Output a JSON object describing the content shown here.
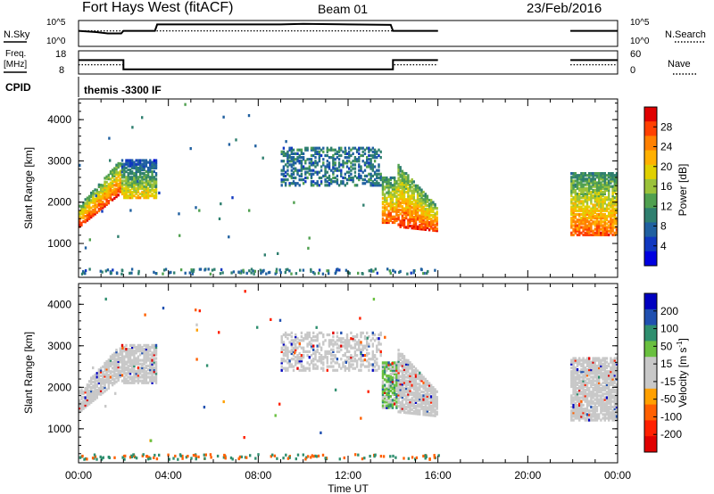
{
  "header": {
    "title": "Fort Hays West (fitACF)",
    "beam": "Beam 01",
    "date": "23/Feb/2016"
  },
  "chart_data": [
    {
      "type": "line",
      "panel": "nsky",
      "ylabel": "N.Sky",
      "ylabel_right": "N.Search",
      "y_left_ticks": [
        "10^5",
        "10^0"
      ],
      "y_right_ticks": [
        "10^5",
        "10^0"
      ],
      "segments": [
        {
          "x": [
            0.0,
            0.8,
            1.3,
            1.9,
            2.0,
            3.4,
            3.5,
            9.0,
            10.0,
            12.0,
            13.9,
            14.0,
            16.0
          ],
          "y": [
            0.6,
            0.55,
            0.5,
            0.5,
            0.6,
            0.6,
            0.85,
            0.85,
            0.87,
            0.85,
            0.83,
            0.6,
            0.6
          ]
        },
        {
          "x": [
            21.9,
            24.0
          ],
          "y": [
            0.6,
            0.6
          ]
        }
      ],
      "dotted_segments": [
        {
          "x": [
            0.0,
            16.0
          ],
          "y": [
            0.6,
            0.6
          ]
        },
        {
          "x": [
            21.9,
            24.0
          ],
          "y": [
            0.6,
            0.6
          ]
        }
      ]
    },
    {
      "type": "line",
      "panel": "freq",
      "ylabel": "Freq.",
      "yunit": "[MHz]",
      "ylabel_right": "Nave",
      "y_left_ticks": [
        "18",
        "8"
      ],
      "y_right_ticks": [
        "60",
        "0"
      ],
      "segments": [
        {
          "x": [
            0.0,
            2.0,
            2.0,
            14.0,
            14.0,
            16.0
          ],
          "y": [
            14,
            14,
            10,
            10,
            14,
            14
          ]
        },
        {
          "x": [
            21.9,
            24.0
          ],
          "y": [
            14,
            14
          ]
        }
      ],
      "dotted_segments": [
        {
          "x": [
            0.0,
            2.0,
            2.0,
            14.0,
            14.0,
            16.0
          ],
          "y": [
            12,
            12,
            10,
            10,
            12,
            12
          ]
        },
        {
          "x": [
            21.9,
            24.0
          ],
          "y": [
            12,
            12
          ]
        }
      ]
    },
    {
      "type": "table",
      "panel": "cpid",
      "label": "CPID",
      "value": "themis -3300 IF"
    },
    {
      "type": "heatmap",
      "panel": "power",
      "ylabel": "Slant Range [km]",
      "xlabel": "Time UT",
      "xlim": [
        0,
        24
      ],
      "ylim": [
        180,
        4500
      ],
      "xticks": [
        "00:00",
        "04:00",
        "08:00",
        "12:00",
        "16:00",
        "20:00",
        "00:00"
      ],
      "yticks": [
        1000,
        2000,
        3000,
        4000
      ],
      "colorbar": {
        "label": "Power [dB]",
        "ticks": [
          "28",
          "24",
          "20",
          "16",
          "12",
          "8",
          "4"
        ],
        "colors": [
          "#e00000",
          "#ff4000",
          "#ff8000",
          "#ffb000",
          "#e0d000",
          "#9bc23a",
          "#50a050",
          "#2f7f6f",
          "#2060a0",
          "#1038c0",
          "#0000e0"
        ]
      },
      "regions": [
        {
          "t": [
            0.0,
            1.9
          ],
          "r": [
            1300,
            2500
          ],
          "value": 24
        },
        {
          "t": [
            1.9,
            3.5
          ],
          "r": [
            2100,
            3000
          ],
          "value": 16
        },
        {
          "t": [
            9.0,
            13.5
          ],
          "r": [
            2400,
            3300
          ],
          "value": 8
        },
        {
          "t": [
            13.5,
            14.2
          ],
          "r": [
            1500,
            2600
          ],
          "value": 22
        },
        {
          "t": [
            14.2,
            16.0
          ],
          "r": [
            1400,
            2400
          ],
          "value": 24
        },
        {
          "t": [
            21.9,
            24.0
          ],
          "r": [
            1200,
            2700
          ],
          "value": 22
        }
      ]
    },
    {
      "type": "heatmap",
      "panel": "velocity",
      "ylabel": "Slant Range [km]",
      "xlabel": "Time UT",
      "xlim": [
        0,
        24
      ],
      "ylim": [
        180,
        4500
      ],
      "xticks": [
        "00:00",
        "04:00",
        "08:00",
        "12:00",
        "16:00",
        "20:00",
        "00:00"
      ],
      "yticks": [
        1000,
        2000,
        3000,
        4000
      ],
      "colorbar": {
        "label": "Velocity [m s^-1]",
        "ticks": [
          "200",
          "100",
          "50",
          "15",
          "-15",
          "-50",
          "-100",
          "-200"
        ],
        "colors": [
          "#0000c0",
          "#2050b0",
          "#2f8f6f",
          "#6ac040",
          "#c8c8c8",
          "#c8c8c8",
          "#ffa000",
          "#ff6000",
          "#ff2000",
          "#e00000"
        ]
      },
      "regions": [
        {
          "t": [
            0.0,
            1.9
          ],
          "r": [
            1300,
            2500
          ],
          "value": 0
        },
        {
          "t": [
            1.9,
            3.5
          ],
          "r": [
            2100,
            3000
          ],
          "value": 0
        },
        {
          "t": [
            9.0,
            13.5
          ],
          "r": [
            2400,
            3300
          ],
          "value": 0
        },
        {
          "t": [
            13.5,
            14.2
          ],
          "r": [
            1500,
            2600
          ],
          "value": 20
        },
        {
          "t": [
            14.2,
            16.0
          ],
          "r": [
            1400,
            2400
          ],
          "value": 0
        },
        {
          "t": [
            21.9,
            24.0
          ],
          "r": [
            1200,
            2700
          ],
          "value": 0
        }
      ]
    }
  ]
}
